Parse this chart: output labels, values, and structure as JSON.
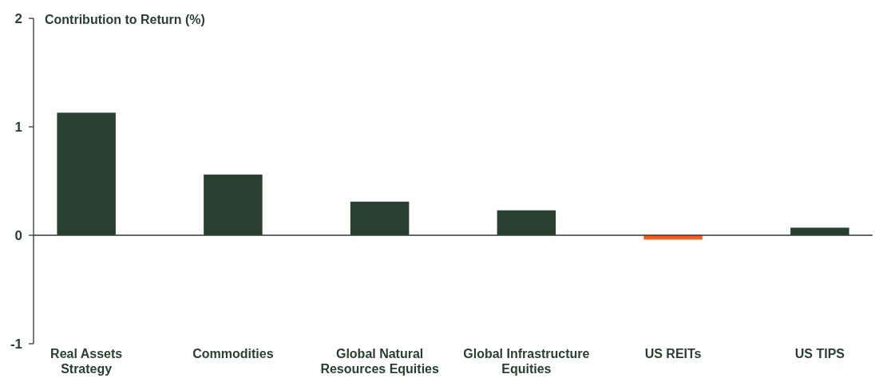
{
  "chart_data": {
    "type": "bar",
    "title": "Contribution to Return (%)",
    "categories": [
      "Real Assets Strategy",
      "Commodities",
      "Global Natural Resources Equities",
      "Global Infrastructure Equities",
      "US REITs",
      "US TIPS"
    ],
    "values": [
      1.13,
      0.56,
      0.31,
      0.23,
      -0.04,
      0.07
    ],
    "colors": [
      "#283f32",
      "#283f32",
      "#283f32",
      "#283f32",
      "#fa5a1e",
      "#283f32"
    ],
    "ylim": [
      -1,
      2
    ],
    "yticks": [
      -1,
      0,
      1,
      2
    ]
  }
}
